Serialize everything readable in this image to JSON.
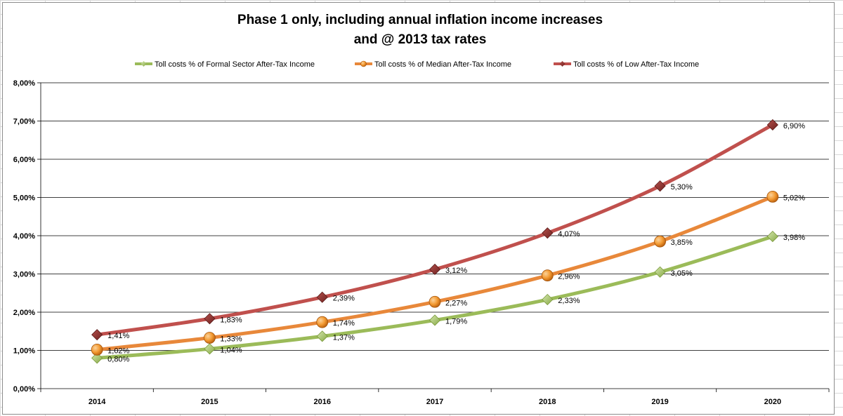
{
  "colors": {
    "formal": "#9bbb59",
    "median": "#e8883a",
    "low": "#c0504d",
    "low_marker": "#8b2f2d",
    "gridline": "#000000"
  },
  "chart_data": {
    "type": "line",
    "title_lines": [
      "Phase 1 only, including annual inflation income increases",
      "and @ 2013 tax rates"
    ],
    "categories": [
      "2014",
      "2015",
      "2016",
      "2017",
      "2018",
      "2019",
      "2020"
    ],
    "ylim": [
      0,
      0.08
    ],
    "yticks": [
      "0,00%",
      "1,00%",
      "2,00%",
      "3,00%",
      "4,00%",
      "5,00%",
      "6,00%",
      "7,00%",
      "8,00%"
    ],
    "grid": true,
    "legend_position": "top",
    "series": [
      {
        "key": "formal",
        "name": "Toll costs % of Formal Sector After-Tax Income",
        "marker": "diamond",
        "values": [
          0.008,
          0.0104,
          0.0137,
          0.0179,
          0.0233,
          0.0305,
          0.0398
        ],
        "labels": [
          "0,80%",
          "1,04%",
          "1,37%",
          "1,79%",
          "2,33%",
          "3,05%",
          "3,98%"
        ]
      },
      {
        "key": "median",
        "name": "Toll costs % of Median After-Tax Income",
        "marker": "circle",
        "values": [
          0.0102,
          0.0133,
          0.0174,
          0.0227,
          0.0296,
          0.0385,
          0.0502
        ],
        "labels": [
          "1,02%",
          "1,33%",
          "1,74%",
          "2,27%",
          "2,96%",
          "3,85%",
          "5,02%"
        ]
      },
      {
        "key": "low",
        "name": "Toll costs % of Low After-Tax Income",
        "marker": "diamond",
        "values": [
          0.0141,
          0.0183,
          0.0239,
          0.0312,
          0.0407,
          0.053,
          0.069
        ],
        "labels": [
          "1,41%",
          "1,83%",
          "2,39%",
          "3,12%",
          "4,07%",
          "5,30%",
          "6,90%"
        ]
      }
    ]
  }
}
